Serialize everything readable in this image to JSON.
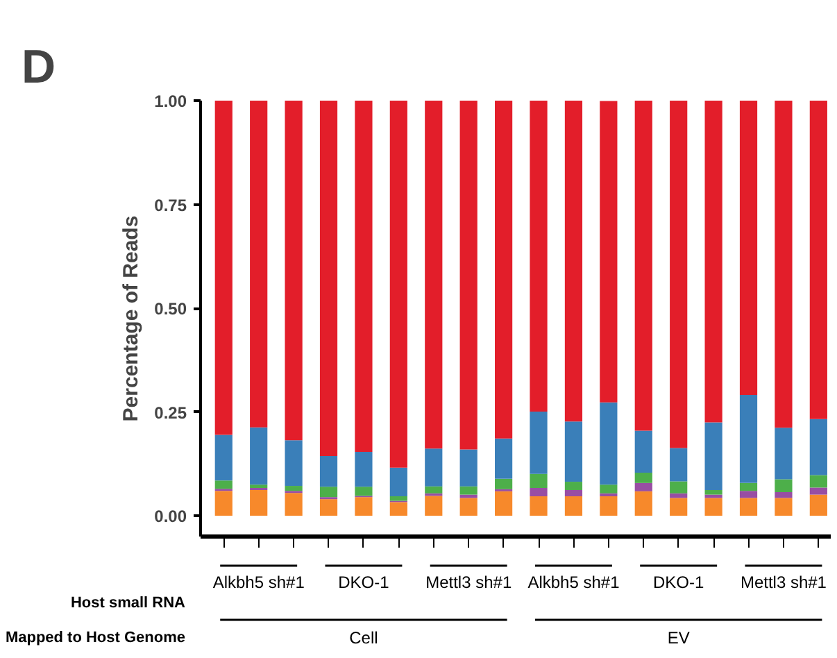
{
  "chart_data": {
    "type": "bar",
    "title": "D",
    "ylabel": "Percentage of Reads",
    "stacked": true,
    "categories": [
      null,
      null,
      null,
      null,
      null,
      null,
      null,
      null,
      null,
      null,
      null,
      null,
      null,
      null,
      null,
      null,
      null,
      null
    ],
    "series": [
      {
        "color": "#f7892b",
        "values": [
          0.06,
          0.062,
          0.055,
          0.04,
          0.045,
          0.033,
          0.048,
          0.043,
          0.059,
          0.047,
          0.047,
          0.047,
          0.059,
          0.043,
          0.043,
          0.043,
          0.043,
          0.051
        ]
      },
      {
        "color": "#984ea3",
        "values": [
          0.005,
          0.005,
          0.005,
          0.005,
          0.003,
          0.003,
          0.006,
          0.008,
          0.005,
          0.02,
          0.015,
          0.007,
          0.02,
          0.011,
          0.008,
          0.017,
          0.014,
          0.017
        ]
      },
      {
        "color": "#4daf4a",
        "values": [
          0.02,
          0.008,
          0.012,
          0.025,
          0.022,
          0.011,
          0.017,
          0.02,
          0.025,
          0.034,
          0.02,
          0.021,
          0.025,
          0.029,
          0.011,
          0.019,
          0.031,
          0.03
        ]
      },
      {
        "color": "#3a7fb9",
        "values": [
          0.11,
          0.138,
          0.11,
          0.074,
          0.084,
          0.069,
          0.091,
          0.089,
          0.097,
          0.15,
          0.145,
          0.198,
          0.101,
          0.08,
          0.163,
          0.212,
          0.124,
          0.135
        ]
      },
      {
        "color": "#e31e2a",
        "values": [
          0.805,
          0.787,
          0.818,
          0.856,
          0.846,
          0.884,
          0.838,
          0.84,
          0.814,
          0.749,
          0.773,
          0.726,
          0.795,
          0.837,
          0.775,
          0.709,
          0.788,
          0.767
        ]
      }
    ],
    "ylim": [
      -0.05,
      1.0
    ],
    "yticks": [
      {
        "value": 0,
        "label": "0.00"
      },
      {
        "value": 0.25,
        "label": "0.25"
      },
      {
        "value": 0.5,
        "label": "0.50"
      },
      {
        "value": 0.75,
        "label": "0.75"
      },
      {
        "value": 1.0,
        "label": "1.00"
      }
    ],
    "grid": false,
    "annotations": [
      "Alkbh5 sh#1",
      "DKO-1",
      "Mettl3 sh#1",
      "Alkbh5 sh#1",
      "DKO-1",
      "Mettl3 sh#1",
      "Cell",
      "EV",
      "Host small RNA",
      "Mapped to Host Genome"
    ]
  }
}
